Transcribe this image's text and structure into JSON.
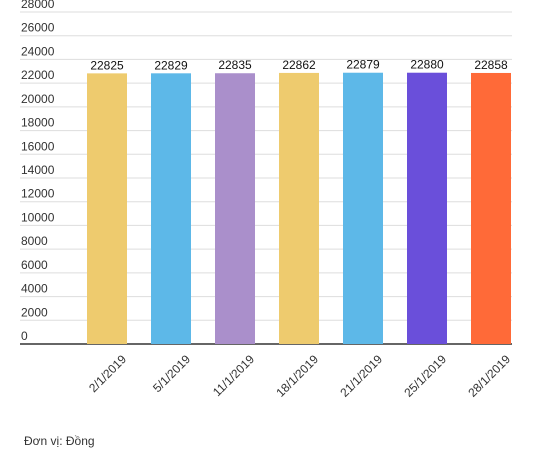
{
  "chart_data": {
    "type": "bar",
    "categories": [
      "2/1/2019",
      "5/1/2019",
      "11/1/2019",
      "18/1/2019",
      "21/1/2019",
      "25/1/2019",
      "28/1/2019"
    ],
    "values": [
      22825,
      22829,
      22835,
      22862,
      22879,
      22880,
      22858
    ],
    "data_labels": [
      "22825",
      "22829",
      "22835",
      "22862",
      "22879",
      "22880",
      "22858"
    ],
    "bar_colors": [
      "#EECB6E",
      "#5DB8E8",
      "#AA8FCB",
      "#EECB6E",
      "#5DB8E8",
      "#6A4FDA",
      "#FF6A38"
    ],
    "ylim": [
      0,
      28000
    ],
    "yticks": [
      0,
      2000,
      4000,
      6000,
      8000,
      10000,
      12000,
      14000,
      16000,
      18000,
      20000,
      22000,
      24000,
      26000,
      28000
    ],
    "ytick_labels": [
      "0",
      "2000",
      "4000",
      "6000",
      "8000",
      "10000",
      "12000",
      "14000",
      "16000",
      "18000",
      "20000",
      "22000",
      "24000",
      "26000",
      "28000"
    ],
    "grid": true,
    "title": "",
    "xlabel": "",
    "ylabel": ""
  },
  "unit_note": "Đơn vị: Đồng"
}
